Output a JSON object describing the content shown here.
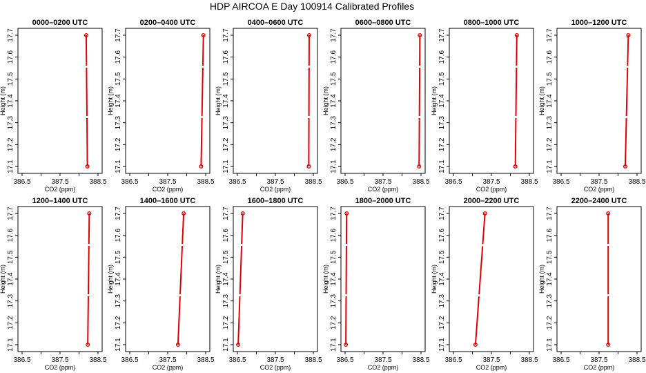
{
  "page_title": "HDP AIRCOA E  Day 100914  Calibrated Profiles",
  "colors": {
    "series": "#e00000",
    "axes": "#000000"
  },
  "chart_data": [
    {
      "type": "line",
      "title": "0000–0200 UTC",
      "xlabel": "CO2 (ppm)",
      "ylabel": "Height (m)",
      "xlim": [
        386.5,
        388.5
      ],
      "ylim": [
        17.1,
        17.7
      ],
      "xticks": [
        "386.5",
        "387.5",
        "388.5"
      ],
      "yticks": [
        "17.1",
        "17.2",
        "17.3",
        "17.4",
        "17.5",
        "17.6",
        "17.7"
      ],
      "series": [
        {
          "x": [
            388.22,
            388.19
          ],
          "y": [
            17.1,
            17.7
          ]
        }
      ]
    },
    {
      "type": "line",
      "title": "0200–0400 UTC",
      "xlabel": "CO2 (ppm)",
      "ylabel": "Height (m)",
      "xlim": [
        386.5,
        388.5
      ],
      "ylim": [
        17.1,
        17.7
      ],
      "xticks": [
        "386.5",
        "387.5",
        "388.5"
      ],
      "yticks": [
        "17.1",
        "17.2",
        "17.3",
        "17.4",
        "17.5",
        "17.6",
        "17.7"
      ],
      "series": [
        {
          "x": [
            388.38,
            388.44
          ],
          "y": [
            17.1,
            17.7
          ]
        }
      ]
    },
    {
      "type": "line",
      "title": "0400–0600 UTC",
      "xlabel": "CO2 (ppm)",
      "ylabel": "Height (m)",
      "xlim": [
        386.5,
        388.5
      ],
      "ylim": [
        17.1,
        17.7
      ],
      "xticks": [
        "386.5",
        "387.5",
        "388.5"
      ],
      "yticks": [
        "17.1",
        "17.2",
        "17.3",
        "17.4",
        "17.5",
        "17.6",
        "17.7"
      ],
      "series": [
        {
          "x": [
            388.38,
            388.39
          ],
          "y": [
            17.1,
            17.7
          ]
        }
      ]
    },
    {
      "type": "line",
      "title": "0600–0800 UTC",
      "xlabel": "CO2 (ppm)",
      "ylabel": "Height (m)",
      "xlim": [
        386.5,
        388.5
      ],
      "ylim": [
        17.1,
        17.7
      ],
      "xticks": [
        "386.5",
        "387.5",
        "388.5"
      ],
      "yticks": [
        "17.1",
        "17.2",
        "17.3",
        "17.4",
        "17.5",
        "17.6",
        "17.7"
      ],
      "series": [
        {
          "x": [
            388.45,
            388.47
          ],
          "y": [
            17.1,
            17.7
          ]
        }
      ]
    },
    {
      "type": "line",
      "title": "0800–1000 UTC",
      "xlabel": "CO2 (ppm)",
      "ylabel": "Height (m)",
      "xlim": [
        386.5,
        388.5
      ],
      "ylim": [
        17.1,
        17.7
      ],
      "xticks": [
        "386.5",
        "387.5",
        "388.5"
      ],
      "yticks": [
        "17.1",
        "17.2",
        "17.3",
        "17.4",
        "17.5",
        "17.6",
        "17.7"
      ],
      "series": [
        {
          "x": [
            388.13,
            388.17
          ],
          "y": [
            17.1,
            17.7
          ]
        }
      ]
    },
    {
      "type": "line",
      "title": "1000–1200 UTC",
      "xlabel": "CO2 (ppm)",
      "ylabel": "Height (m)",
      "xlim": [
        386.5,
        388.5
      ],
      "ylim": [
        17.1,
        17.7
      ],
      "xticks": [
        "386.5",
        "387.5",
        "388.5"
      ],
      "yticks": [
        "17.1",
        "17.2",
        "17.3",
        "17.4",
        "17.5",
        "17.6",
        "17.7"
      ],
      "series": [
        {
          "x": [
            388.19,
            388.27
          ],
          "y": [
            17.1,
            17.7
          ]
        }
      ]
    },
    {
      "type": "line",
      "title": "1200–1400 UTC",
      "xlabel": "CO2 (ppm)",
      "ylabel": "Height (m)",
      "xlim": [
        386.5,
        388.5
      ],
      "ylim": [
        17.1,
        17.7
      ],
      "xticks": [
        "386.5",
        "387.5",
        "388.5"
      ],
      "yticks": [
        "17.1",
        "17.2",
        "17.3",
        "17.4",
        "17.5",
        "17.6",
        "17.7"
      ],
      "series": [
        {
          "x": [
            388.23,
            388.27
          ],
          "y": [
            17.1,
            17.7
          ]
        }
      ]
    },
    {
      "type": "line",
      "title": "1400–1600 UTC",
      "xlabel": "CO2 (ppm)",
      "ylabel": "Height (m)",
      "xlim": [
        386.5,
        388.5
      ],
      "ylim": [
        17.1,
        17.7
      ],
      "xticks": [
        "386.5",
        "387.5",
        "388.5"
      ],
      "yticks": [
        "17.1",
        "17.2",
        "17.3",
        "17.4",
        "17.5",
        "17.6",
        "17.7"
      ],
      "series": [
        {
          "x": [
            387.77,
            387.92
          ],
          "y": [
            17.1,
            17.7
          ]
        }
      ]
    },
    {
      "type": "line",
      "title": "1600–1800 UTC",
      "xlabel": "CO2 (ppm)",
      "ylabel": "Height (m)",
      "xlim": [
        386.5,
        388.5
      ],
      "ylim": [
        17.1,
        17.7
      ],
      "xticks": [
        "386.5",
        "387.5",
        "388.5"
      ],
      "yticks": [
        "17.1",
        "17.2",
        "17.3",
        "17.4",
        "17.5",
        "17.6",
        "17.7"
      ],
      "series": [
        {
          "x": [
            386.52,
            386.64
          ],
          "y": [
            17.1,
            17.7
          ]
        }
      ]
    },
    {
      "type": "line",
      "title": "1800–2000 UTC",
      "xlabel": "CO2 (ppm)",
      "ylabel": "Height (m)",
      "xlim": [
        386.5,
        388.5
      ],
      "ylim": [
        17.1,
        17.7
      ],
      "xticks": [
        "386.5",
        "387.5",
        "388.5"
      ],
      "yticks": [
        "17.1",
        "17.2",
        "17.3",
        "17.4",
        "17.5",
        "17.6",
        "17.7"
      ],
      "series": [
        {
          "x": [
            386.52,
            386.54
          ],
          "y": [
            17.1,
            17.7
          ]
        }
      ]
    },
    {
      "type": "line",
      "title": "2000–2200 UTC",
      "xlabel": "CO2 (ppm)",
      "ylabel": "Height (m)",
      "xlim": [
        386.5,
        388.5
      ],
      "ylim": [
        17.1,
        17.7
      ],
      "xticks": [
        "386.5",
        "387.5",
        "388.5"
      ],
      "yticks": [
        "17.1",
        "17.2",
        "17.3",
        "17.4",
        "17.5",
        "17.6",
        "17.7"
      ],
      "series": [
        {
          "x": [
            387.08,
            387.33
          ],
          "y": [
            17.1,
            17.7
          ]
        }
      ]
    },
    {
      "type": "line",
      "title": "2200–2400 UTC",
      "xlabel": "CO2 (ppm)",
      "ylabel": "Height (m)",
      "xlim": [
        386.5,
        388.5
      ],
      "ylim": [
        17.1,
        17.7
      ],
      "xticks": [
        "386.5",
        "387.5",
        "388.5"
      ],
      "yticks": [
        "17.1",
        "17.2",
        "17.3",
        "17.4",
        "17.5",
        "17.6",
        "17.7"
      ],
      "series": [
        {
          "x": [
            387.74,
            387.74
          ],
          "y": [
            17.1,
            17.7
          ]
        }
      ]
    }
  ]
}
